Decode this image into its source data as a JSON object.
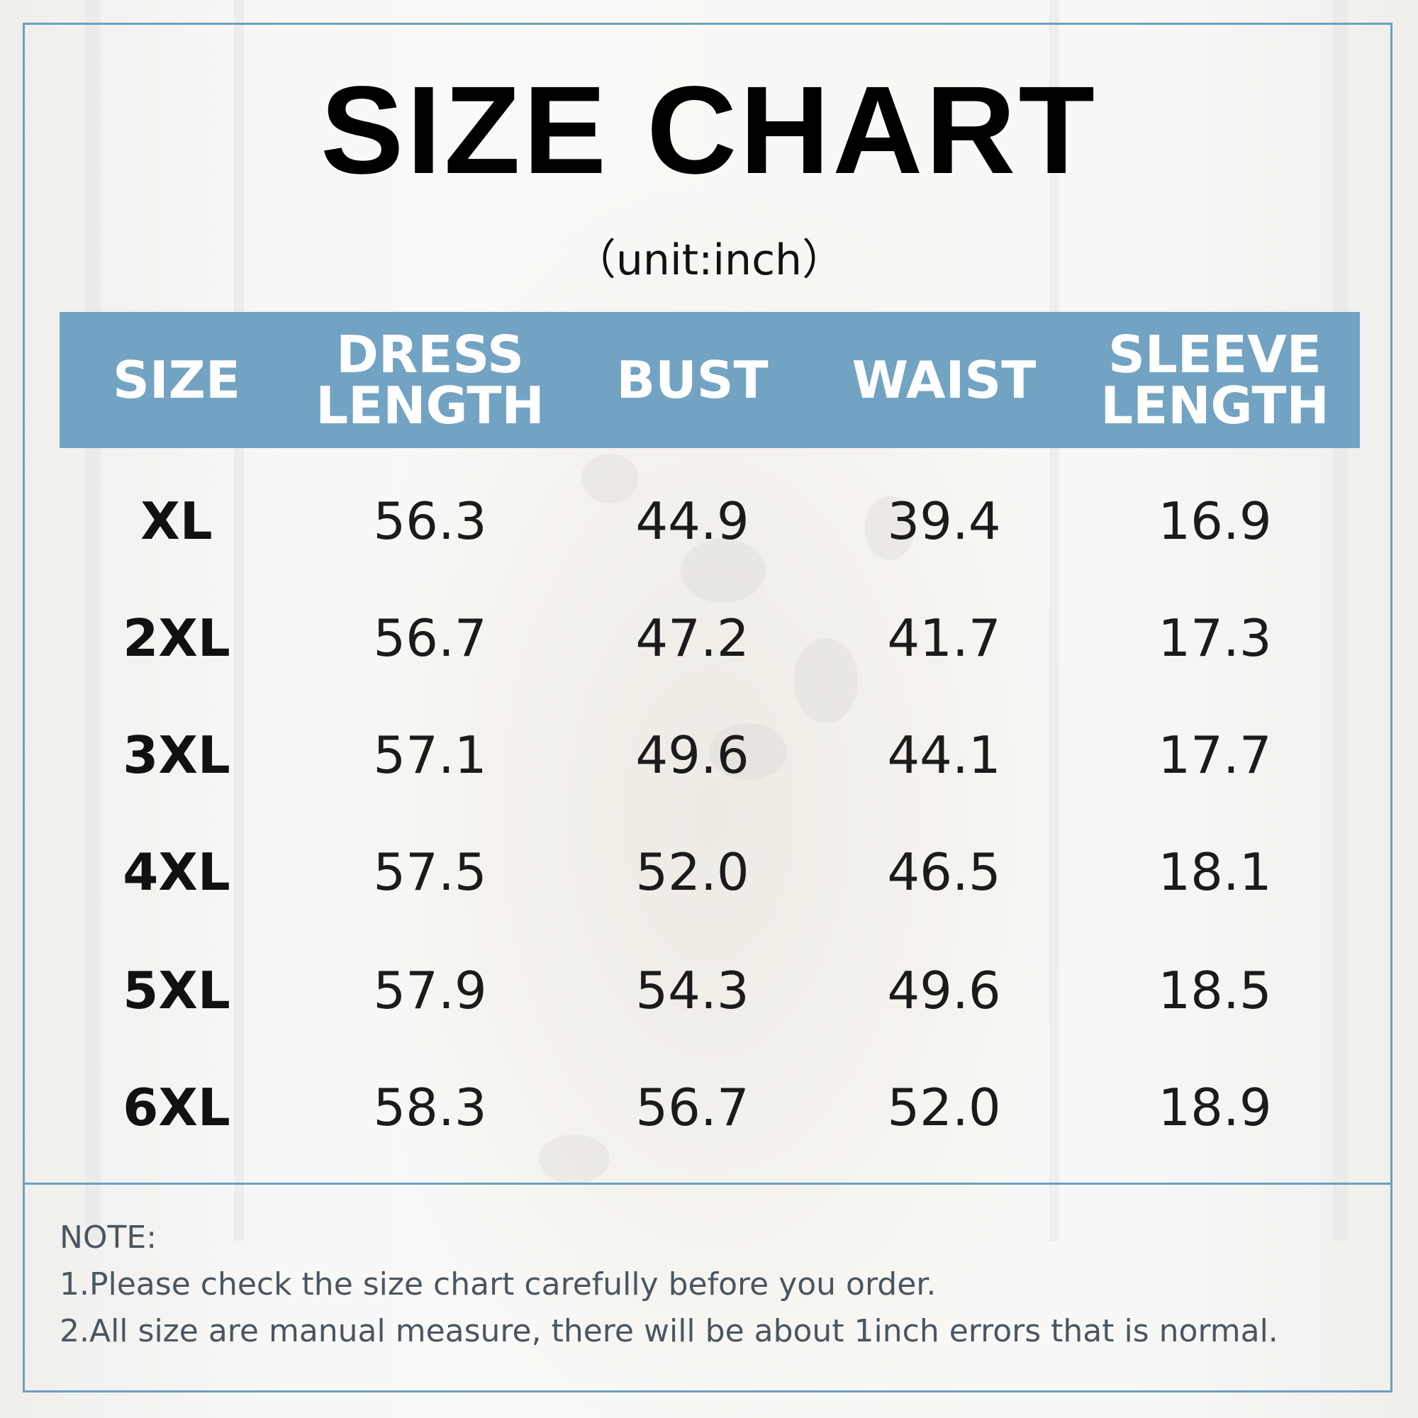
{
  "title": "SIZE CHART",
  "unit": "（unit:inch）",
  "header": {
    "size": "SIZE",
    "dress_length": "DRESS\nLENGTH",
    "bust": "BUST",
    "waist": "WAIST",
    "sleeve_length": "SLEEVE\nLENGTH"
  },
  "rows": [
    {
      "size": "XL",
      "dress_length": "56.3",
      "bust": "44.9",
      "waist": "39.4",
      "sleeve_length": "16.9"
    },
    {
      "size": "2XL",
      "dress_length": "56.7",
      "bust": "47.2",
      "waist": "41.7",
      "sleeve_length": "17.3"
    },
    {
      "size": "3XL",
      "dress_length": "57.1",
      "bust": "49.6",
      "waist": "44.1",
      "sleeve_length": "17.7"
    },
    {
      "size": "4XL",
      "dress_length": "57.5",
      "bust": "52.0",
      "waist": "46.5",
      "sleeve_length": "18.1"
    },
    {
      "size": "5XL",
      "dress_length": "57.9",
      "bust": "54.3",
      "waist": "49.6",
      "sleeve_length": "18.5"
    },
    {
      "size": "6XL",
      "dress_length": "58.3",
      "bust": "56.7",
      "waist": "52.0",
      "sleeve_length": "18.9"
    }
  ],
  "notes": {
    "heading": "NOTE:",
    "line1": "1.Please check the size chart carefully before you order.",
    "line2": "2.All size are manual measure, there will be about 1inch errors that is normal."
  },
  "colors": {
    "header_bg": "#73a3c2",
    "frame": "#6f9fbe",
    "note_text": "#4a5660"
  }
}
